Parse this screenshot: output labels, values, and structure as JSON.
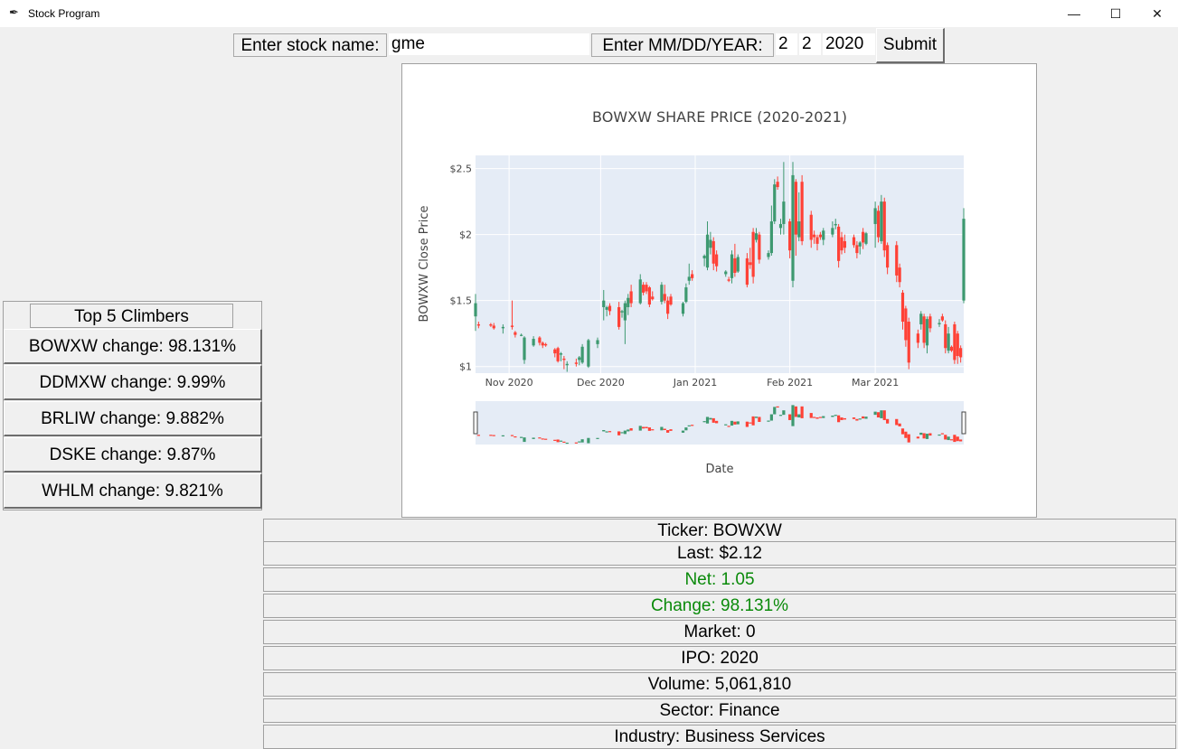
{
  "window": {
    "title": "Stock Program",
    "minimize": "—",
    "maximize": "☐",
    "close": "✕",
    "icon": "feather-icon"
  },
  "toolbar": {
    "stock_label": "Enter stock name:",
    "stock_value": "gme",
    "date_label": "Enter MM/DD/YEAR:",
    "month_value": "2",
    "day_value": "2",
    "year_value": "2020",
    "submit_label": "Submit"
  },
  "climbers": {
    "title": "Top 5 Climbers",
    "items": [
      "BOWXW change: 98.131%",
      "DDMXW change: 9.99%",
      "BRLIW change: 9.882%",
      "DSKE change: 9.87%",
      "WHLM change: 9.821%"
    ]
  },
  "info": {
    "ticker": "Ticker: BOWXW",
    "last": "Last: $2.12",
    "net": "Net: 1.05",
    "change": "Change: 98.131%",
    "market": "Market: 0",
    "ipo": "IPO: 2020",
    "volume": "Volume: 5,061,810",
    "sector": "Sector: Finance",
    "industry": "Industry: Business Services"
  },
  "colors": {
    "increasing": "#3d9970",
    "decreasing": "#ff4136",
    "positive_text": "#0a8a0a",
    "plot_bg": "#e5ecf6"
  },
  "chart_data": {
    "type": "candlestick",
    "title": "BOWXW SHARE PRICE (2020-2021)",
    "xlabel": "Date",
    "ylabel": "BOWXW Close Price",
    "x_ticks": [
      "Nov 2020",
      "Dec 2020",
      "Jan 2021",
      "Feb 2021",
      "Mar 2021"
    ],
    "y_ticks": [
      "$1",
      "$1.5",
      "$2",
      "$2.5"
    ],
    "ylim": [
      0.95,
      2.6
    ],
    "xlim": [
      "2020-10-21",
      "2021-03-30"
    ],
    "grid": true,
    "rangeslider": true,
    "candles": [
      [
        "2020-10-21",
        1.38,
        1.55,
        1.27,
        1.48
      ],
      [
        "2020-10-22",
        1.32,
        1.34,
        1.29,
        1.31
      ],
      [
        "2020-10-26",
        1.32,
        1.33,
        1.3,
        1.31
      ],
      [
        "2020-10-27",
        1.31,
        1.33,
        1.28,
        1.29
      ],
      [
        "2020-10-30",
        1.29,
        1.32,
        1.25,
        1.3
      ],
      [
        "2020-11-02",
        1.31,
        1.5,
        1.28,
        1.3
      ],
      [
        "2020-11-03",
        1.26,
        1.27,
        1.22,
        1.24
      ],
      [
        "2020-11-05",
        1.24,
        1.25,
        1.23,
        1.24
      ],
      [
        "2020-11-06",
        1.05,
        1.23,
        1.02,
        1.22
      ],
      [
        "2020-11-09",
        1.16,
        1.23,
        1.15,
        1.21
      ],
      [
        "2020-11-11",
        1.22,
        1.23,
        1.16,
        1.18
      ],
      [
        "2020-11-12",
        1.18,
        1.19,
        1.14,
        1.16
      ],
      [
        "2020-11-13",
        1.17,
        1.18,
        1.15,
        1.16
      ],
      [
        "2020-11-16",
        1.13,
        1.14,
        1.07,
        1.1
      ],
      [
        "2020-11-17",
        1.14,
        1.15,
        1.03,
        1.04
      ],
      [
        "2020-11-18",
        1.09,
        1.11,
        1.04,
        1.1
      ],
      [
        "2020-11-19",
        1.06,
        1.08,
        0.98,
        1.05
      ],
      [
        "2020-11-20",
        1.01,
        1.04,
        0.96,
        1.02
      ],
      [
        "2020-11-23",
        1.03,
        1.06,
        1.0,
        1.02
      ],
      [
        "2020-11-24",
        1.05,
        1.08,
        1.01,
        1.07
      ],
      [
        "2020-11-25",
        1.03,
        1.17,
        1.02,
        1.15
      ],
      [
        "2020-11-27",
        1.0,
        1.21,
        0.99,
        1.2
      ],
      [
        "2020-11-30",
        1.17,
        1.22,
        1.14,
        1.2
      ],
      [
        "2020-12-02",
        1.45,
        1.58,
        1.35,
        1.5
      ],
      [
        "2020-12-03",
        1.43,
        1.46,
        1.38,
        1.45
      ],
      [
        "2020-12-04",
        1.46,
        1.48,
        1.39,
        1.42
      ],
      [
        "2020-12-07",
        1.45,
        1.49,
        1.28,
        1.3
      ],
      [
        "2020-12-08",
        1.41,
        1.43,
        1.37,
        1.42
      ],
      [
        "2020-12-09",
        1.35,
        1.5,
        1.17,
        1.48
      ],
      [
        "2020-12-10",
        1.45,
        1.55,
        1.39,
        1.52
      ],
      [
        "2020-12-11",
        1.57,
        1.62,
        1.45,
        1.48
      ],
      [
        "2020-12-14",
        1.48,
        1.7,
        1.47,
        1.66
      ],
      [
        "2020-12-15",
        1.62,
        1.64,
        1.54,
        1.56
      ],
      [
        "2020-12-16",
        1.62,
        1.64,
        1.55,
        1.57
      ],
      [
        "2020-12-17",
        1.6,
        1.61,
        1.45,
        1.47
      ],
      [
        "2020-12-18",
        1.53,
        1.57,
        1.5,
        1.51
      ],
      [
        "2020-12-21",
        1.49,
        1.64,
        1.47,
        1.62
      ],
      [
        "2020-12-22",
        1.55,
        1.62,
        1.48,
        1.5
      ],
      [
        "2020-12-23",
        1.5,
        1.53,
        1.36,
        1.4
      ],
      [
        "2020-12-24",
        1.53,
        1.55,
        1.46,
        1.47
      ],
      [
        "2020-12-28",
        1.4,
        1.49,
        1.38,
        1.48
      ],
      [
        "2020-12-29",
        1.49,
        1.63,
        1.48,
        1.6
      ],
      [
        "2020-12-30",
        1.65,
        1.78,
        1.62,
        1.68
      ],
      [
        "2020-12-31",
        1.7,
        1.73,
        1.65,
        1.67
      ],
      [
        "2021-01-04",
        1.82,
        1.85,
        1.76,
        1.84
      ],
      [
        "2021-01-05",
        1.75,
        2.1,
        1.73,
        2.0
      ],
      [
        "2021-01-06",
        1.9,
        2.02,
        1.85,
        1.96
      ],
      [
        "2021-01-07",
        1.95,
        1.98,
        1.73,
        1.78
      ],
      [
        "2021-01-08",
        1.85,
        1.88,
        1.72,
        1.76
      ],
      [
        "2021-01-11",
        1.7,
        1.73,
        1.68,
        1.72
      ],
      [
        "2021-01-12",
        1.66,
        1.68,
        1.64,
        1.65
      ],
      [
        "2021-01-13",
        1.67,
        1.88,
        1.63,
        1.85
      ],
      [
        "2021-01-14",
        1.82,
        1.93,
        1.68,
        1.71
      ],
      [
        "2021-01-15",
        1.72,
        1.85,
        1.71,
        1.83
      ],
      [
        "2021-01-18",
        1.82,
        1.86,
        1.6,
        1.62
      ],
      [
        "2021-01-19",
        1.79,
        1.9,
        1.74,
        1.77
      ],
      [
        "2021-01-20",
        2.02,
        2.05,
        1.63,
        1.68
      ],
      [
        "2021-01-21",
        1.96,
        2.05,
        1.94,
        2.01
      ],
      [
        "2021-01-22",
        2.0,
        2.02,
        1.78,
        1.81
      ],
      [
        "2021-01-25",
        1.83,
        1.88,
        1.81,
        1.86
      ],
      [
        "2021-01-26",
        1.86,
        2.22,
        1.84,
        2.1
      ],
      [
        "2021-01-27",
        2.1,
        2.42,
        2.08,
        2.38
      ],
      [
        "2021-01-28",
        2.4,
        2.44,
        2.34,
        2.36
      ],
      [
        "2021-01-29",
        2.05,
        2.12,
        2.0,
        2.08
      ],
      [
        "2021-01-30",
        2.08,
        2.55,
        2.0,
        2.25
      ],
      [
        "2021-02-01",
        2.1,
        2.12,
        1.82,
        1.88
      ],
      [
        "2021-02-02",
        1.65,
        2.55,
        1.6,
        2.45
      ],
      [
        "2021-02-03",
        2.4,
        2.42,
        1.84,
        2.0
      ],
      [
        "2021-02-04",
        1.98,
        2.32,
        1.95,
        2.1
      ],
      [
        "2021-02-05",
        2.4,
        2.45,
        1.92,
        1.95
      ],
      [
        "2021-02-08",
        2.15,
        2.18,
        1.9,
        1.96
      ],
      [
        "2021-02-09",
        2.0,
        2.03,
        1.93,
        1.98
      ],
      [
        "2021-02-10",
        1.98,
        2.0,
        1.88,
        1.93
      ],
      [
        "2021-02-11",
        2.0,
        2.02,
        1.96,
        1.98
      ],
      [
        "2021-02-12",
        1.96,
        2.05,
        1.92,
        2.03
      ],
      [
        "2021-02-15",
        2.0,
        2.1,
        1.98,
        2.05
      ],
      [
        "2021-02-16",
        2.07,
        2.12,
        2.04,
        2.08
      ],
      [
        "2021-02-17",
        2.06,
        2.08,
        1.75,
        1.8
      ],
      [
        "2021-02-18",
        1.98,
        2.02,
        1.85,
        1.88
      ],
      [
        "2021-02-19",
        1.95,
        2.0,
        1.86,
        1.9
      ],
      [
        "2021-02-22",
        1.98,
        2.0,
        1.9,
        1.92
      ],
      [
        "2021-02-23",
        1.92,
        1.95,
        1.82,
        1.86
      ],
      [
        "2021-02-24",
        1.91,
        1.95,
        1.85,
        1.94
      ],
      [
        "2021-02-25",
        2.02,
        2.05,
        1.89,
        1.94
      ],
      [
        "2021-02-26",
        1.93,
        2.02,
        1.92,
        2.01
      ],
      [
        "2021-03-01",
        2.08,
        2.25,
        1.9,
        2.2
      ],
      [
        "2021-03-02",
        2.18,
        2.22,
        1.94,
        1.98
      ],
      [
        "2021-03-03",
        1.95,
        2.3,
        1.93,
        2.25
      ],
      [
        "2021-03-04",
        2.25,
        2.28,
        1.83,
        1.88
      ],
      [
        "2021-03-05",
        1.92,
        1.94,
        1.7,
        1.75
      ],
      [
        "2021-03-08",
        1.92,
        1.95,
        1.64,
        1.69
      ],
      [
        "2021-03-09",
        1.75,
        1.78,
        1.6,
        1.64
      ],
      [
        "2021-03-10",
        1.56,
        1.58,
        1.28,
        1.34
      ],
      [
        "2021-03-11",
        1.44,
        1.46,
        1.15,
        1.2
      ],
      [
        "2021-03-12",
        1.34,
        1.37,
        0.98,
        1.03
      ],
      [
        "2021-03-15",
        1.25,
        1.28,
        1.14,
        1.18
      ],
      [
        "2021-03-16",
        1.32,
        1.42,
        1.28,
        1.4
      ],
      [
        "2021-03-17",
        1.38,
        1.4,
        1.14,
        1.18
      ],
      [
        "2021-03-18",
        1.16,
        1.38,
        1.1,
        1.36
      ],
      [
        "2021-03-19",
        1.38,
        1.4,
        1.26,
        1.29
      ],
      [
        "2021-03-22",
        1.32,
        1.36,
        1.3,
        1.33
      ],
      [
        "2021-03-23",
        1.38,
        1.4,
        1.34,
        1.35
      ],
      [
        "2021-03-24",
        1.32,
        1.35,
        1.1,
        1.14
      ],
      [
        "2021-03-25",
        1.12,
        1.3,
        1.1,
        1.25
      ],
      [
        "2021-03-26",
        1.15,
        1.16,
        1.11,
        1.12
      ],
      [
        "2021-03-27",
        1.32,
        1.34,
        1.02,
        1.05
      ],
      [
        "2021-03-28",
        1.25,
        1.27,
        1.02,
        1.08
      ],
      [
        "2021-03-29",
        1.14,
        1.16,
        1.03,
        1.07
      ],
      [
        "2021-03-30",
        1.5,
        2.2,
        1.48,
        2.12
      ]
    ]
  }
}
